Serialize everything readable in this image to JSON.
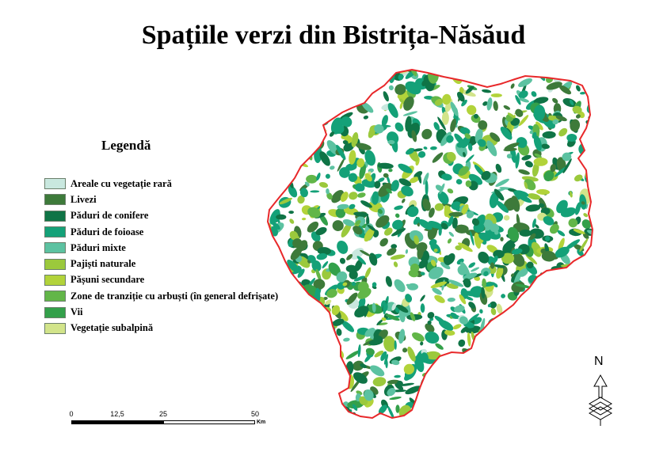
{
  "title": "Spațiile verzi din Bistrița-Năsăud",
  "legend": {
    "title": "Legendă",
    "items": [
      {
        "label": "Areale cu vegetație rară",
        "color": "#c9e8df"
      },
      {
        "label": "Livezi",
        "color": "#3d7a3a"
      },
      {
        "label": "Păduri de conifere",
        "color": "#0f7446"
      },
      {
        "label": "Păduri de foioase",
        "color": "#14a178"
      },
      {
        "label": "Păduri mixte",
        "color": "#5cc2a1"
      },
      {
        "label": "Pajiști naturale",
        "color": "#9bc93c"
      },
      {
        "label": "Pășuni secundare",
        "color": "#b2d33a"
      },
      {
        "label": "Zone de tranziție cu arbuști (în general defrișate)",
        "color": "#62b648"
      },
      {
        "label": "Vii",
        "color": "#33a04a"
      },
      {
        "label": "Vegetație subalpină",
        "color": "#d2e48a"
      }
    ]
  },
  "scale_bar": {
    "ticks": [
      "0",
      "12,5",
      "25",
      "50"
    ],
    "unit": "Km"
  },
  "north_arrow": {
    "letter": "N"
  },
  "boundary_color": "#e8282a"
}
